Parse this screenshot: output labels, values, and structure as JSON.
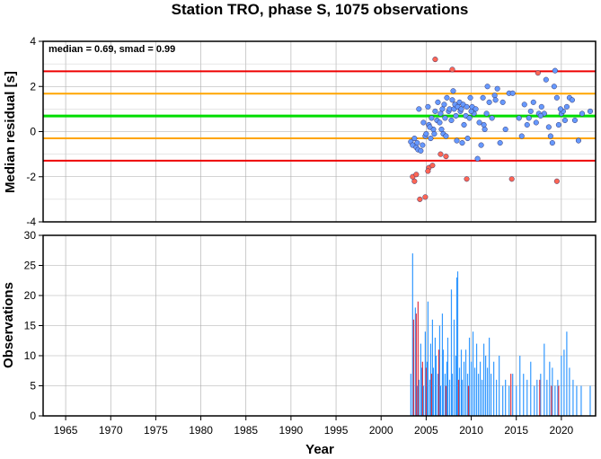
{
  "chart_data": [
    {
      "type": "scatter",
      "title": "Station TRO, phase S, 1075 observations",
      "annotation": "median = 0.69, smad = 0.99",
      "ylabel": "Median residual [s]",
      "xlabel": "",
      "xlim": [
        1962.5,
        2023.8
      ],
      "ylim": [
        -4,
        4
      ],
      "yticks": [
        "-4",
        "-2",
        "0",
        "2",
        "4"
      ],
      "ytick_values": [
        -4,
        -2,
        0,
        2,
        4
      ],
      "grid": true,
      "lines": [
        {
          "name": "median",
          "y": 0.69,
          "color": "#00dd00"
        },
        {
          "name": "+1 smad",
          "y": 1.68,
          "color": "#ffa500"
        },
        {
          "name": "-1 smad",
          "y": -0.3,
          "color": "#ffa500"
        },
        {
          "name": "+2 smad",
          "y": 2.67,
          "color": "#ee0000"
        },
        {
          "name": "-2 smad",
          "y": -1.29,
          "color": "#ee0000"
        }
      ],
      "series": [
        {
          "color": "#6699ff",
          "points": [
            [
              2003.3,
              -0.45
            ],
            [
              2003.5,
              -0.6
            ],
            [
              2003.7,
              -0.3
            ],
            [
              2003.9,
              -0.7
            ],
            [
              2004.1,
              -0.8
            ],
            [
              2004.2,
              1.0
            ],
            [
              2004.4,
              -0.85
            ],
            [
              2004.6,
              -0.6
            ],
            [
              2004.7,
              0.4
            ],
            [
              2004.9,
              -0.2
            ],
            [
              2005.0,
              -0.1
            ],
            [
              2005.2,
              1.1
            ],
            [
              2005.3,
              0.3
            ],
            [
              2005.5,
              -0.3
            ],
            [
              2005.6,
              0.6
            ],
            [
              2005.8,
              0.1
            ],
            [
              2005.9,
              -0.1
            ],
            [
              2006.0,
              0.9
            ],
            [
              2006.2,
              0.5
            ],
            [
              2006.3,
              1.3
            ],
            [
              2006.5,
              0.4
            ],
            [
              2006.6,
              0.8
            ],
            [
              2006.8,
              1.0
            ],
            [
              2006.9,
              -0.1
            ],
            [
              2007.0,
              1.2
            ],
            [
              2007.2,
              -0.2
            ],
            [
              2007.3,
              1.5
            ],
            [
              2007.5,
              0.9
            ],
            [
              2007.6,
              1.0
            ],
            [
              2007.8,
              0.5
            ],
            [
              2007.9,
              1.4
            ],
            [
              2008.0,
              1.8
            ],
            [
              2008.1,
              1.0
            ],
            [
              2008.2,
              1.2
            ],
            [
              2008.4,
              -0.4
            ],
            [
              2008.5,
              1.1
            ],
            [
              2008.7,
              1.3
            ],
            [
              2008.8,
              0.9
            ],
            [
              2008.9,
              1.0
            ],
            [
              2009.1,
              1.2
            ],
            [
              2009.2,
              0.3
            ],
            [
              2009.4,
              0.7
            ],
            [
              2009.5,
              1.1
            ],
            [
              2009.6,
              -0.3
            ],
            [
              2009.8,
              0.6
            ],
            [
              2009.9,
              1.5
            ],
            [
              2010.1,
              1.1
            ],
            [
              2010.3,
              0.8
            ],
            [
              2010.5,
              1.0
            ],
            [
              2010.7,
              -1.2
            ],
            [
              2010.9,
              0.4
            ],
            [
              2011.1,
              -0.6
            ],
            [
              2011.3,
              1.5
            ],
            [
              2011.5,
              0.1
            ],
            [
              2011.7,
              0.8
            ],
            [
              2011.8,
              2.0
            ],
            [
              2012.0,
              1.3
            ],
            [
              2012.3,
              0.6
            ],
            [
              2012.6,
              1.6
            ],
            [
              2012.9,
              1.9
            ],
            [
              2013.2,
              -0.5
            ],
            [
              2013.5,
              1.3
            ],
            [
              2013.8,
              0.1
            ],
            [
              2014.2,
              1.7
            ],
            [
              2014.6,
              1.7
            ],
            [
              2015.3,
              0.6
            ],
            [
              2015.6,
              -0.2
            ],
            [
              2015.9,
              1.2
            ],
            [
              2016.2,
              0.3
            ],
            [
              2016.6,
              0.9
            ],
            [
              2016.9,
              1.3
            ],
            [
              2017.2,
              0.4
            ],
            [
              2017.5,
              0.8
            ],
            [
              2017.8,
              1.1
            ],
            [
              2018.1,
              0.8
            ],
            [
              2018.3,
              2.3
            ],
            [
              2018.6,
              0.2
            ],
            [
              2018.8,
              -0.2
            ],
            [
              2019.0,
              -0.5
            ],
            [
              2019.2,
              2.0
            ],
            [
              2019.3,
              2.7
            ],
            [
              2019.5,
              1.5
            ],
            [
              2019.7,
              0.3
            ],
            [
              2020.0,
              0.8
            ],
            [
              2020.2,
              0.9
            ],
            [
              2020.4,
              0.5
            ],
            [
              2020.6,
              1.1
            ],
            [
              2020.9,
              1.5
            ],
            [
              2021.2,
              1.4
            ],
            [
              2021.5,
              0.5
            ],
            [
              2021.9,
              -0.4
            ],
            [
              2022.3,
              0.8
            ],
            [
              2023.2,
              0.9
            ],
            [
              2004.0,
              -0.5
            ],
            [
              2005.4,
              0.2
            ],
            [
              2006.7,
              0.1
            ],
            [
              2008.3,
              0.7
            ],
            [
              2010.0,
              0.9
            ],
            [
              2012.7,
              1.4
            ],
            [
              2016.4,
              0.6
            ],
            [
              2017.7,
              0.7
            ],
            [
              2019.9,
              1.0
            ],
            [
              2011.4,
              0.3
            ],
            [
              2009.0,
              -0.5
            ],
            [
              2007.1,
              0.6
            ]
          ]
        },
        {
          "color": "#ff6655",
          "points": [
            [
              2003.5,
              -2.0
            ],
            [
              2003.7,
              -2.2
            ],
            [
              2003.9,
              -1.9
            ],
            [
              2004.3,
              -3.0
            ],
            [
              2004.9,
              -2.9
            ],
            [
              2005.3,
              -1.6
            ],
            [
              2005.7,
              -1.5
            ],
            [
              2006.0,
              3.2
            ],
            [
              2006.6,
              -1.0
            ],
            [
              2007.2,
              -1.1
            ],
            [
              2007.9,
              2.75
            ],
            [
              2009.5,
              -2.1
            ],
            [
              2014.5,
              -2.1
            ],
            [
              2017.4,
              2.6
            ],
            [
              2019.5,
              -2.2
            ],
            [
              2005.2,
              -1.75
            ]
          ]
        }
      ]
    },
    {
      "type": "bar",
      "ylabel": "Observations",
      "xlabel": "Year",
      "xlim": [
        1962.5,
        2023.8
      ],
      "ylim": [
        0,
        30
      ],
      "xticks": [
        "1965",
        "1970",
        "1975",
        "1980",
        "1985",
        "1990",
        "1995",
        "2000",
        "2005",
        "2010",
        "2015",
        "2020"
      ],
      "xtick_values": [
        1965,
        1970,
        1975,
        1980,
        1985,
        1990,
        1995,
        2000,
        2005,
        2010,
        2015,
        2020
      ],
      "yticks": [
        "0",
        "5",
        "10",
        "15",
        "20",
        "25",
        "30"
      ],
      "ytick_values": [
        0,
        5,
        10,
        15,
        20,
        25,
        30
      ],
      "grid": true,
      "series": [
        {
          "color": "#3399ff",
          "bars": [
            [
              2003.3,
              7
            ],
            [
              2003.5,
              27
            ],
            [
              2003.6,
              13
            ],
            [
              2003.8,
              18
            ],
            [
              2004.0,
              5
            ],
            [
              2004.2,
              6
            ],
            [
              2004.4,
              12
            ],
            [
              2004.5,
              8
            ],
            [
              2004.7,
              5
            ],
            [
              2004.9,
              14
            ],
            [
              2005.1,
              9
            ],
            [
              2005.2,
              19
            ],
            [
              2005.4,
              6
            ],
            [
              2005.5,
              12
            ],
            [
              2005.7,
              16
            ],
            [
              2005.8,
              8
            ],
            [
              2006.0,
              13
            ],
            [
              2006.1,
              10
            ],
            [
              2006.3,
              7
            ],
            [
              2006.5,
              15
            ],
            [
              2006.6,
              5
            ],
            [
              2006.8,
              17
            ],
            [
              2006.9,
              11
            ],
            [
              2007.1,
              7
            ],
            [
              2007.3,
              9
            ],
            [
              2007.4,
              13
            ],
            [
              2007.6,
              6
            ],
            [
              2007.8,
              21
            ],
            [
              2007.9,
              7
            ],
            [
              2008.1,
              16
            ],
            [
              2008.3,
              10
            ],
            [
              2008.4,
              23
            ],
            [
              2008.5,
              24
            ],
            [
              2008.7,
              8
            ],
            [
              2008.9,
              11
            ],
            [
              2009.0,
              6
            ],
            [
              2009.2,
              9
            ],
            [
              2009.4,
              11
            ],
            [
              2009.6,
              7
            ],
            [
              2009.8,
              13
            ],
            [
              2010.0,
              9
            ],
            [
              2010.2,
              14
            ],
            [
              2010.4,
              8
            ],
            [
              2010.6,
              12
            ],
            [
              2010.8,
              7
            ],
            [
              2011.0,
              9
            ],
            [
              2011.2,
              6
            ],
            [
              2011.4,
              12
            ],
            [
              2011.6,
              10
            ],
            [
              2011.8,
              8
            ],
            [
              2012.0,
              13
            ],
            [
              2012.2,
              7
            ],
            [
              2012.5,
              9
            ],
            [
              2012.8,
              6
            ],
            [
              2013.1,
              10
            ],
            [
              2013.5,
              5
            ],
            [
              2013.8,
              6
            ],
            [
              2014.2,
              5
            ],
            [
              2014.6,
              7
            ],
            [
              2015.0,
              5
            ],
            [
              2015.4,
              10
            ],
            [
              2015.8,
              7
            ],
            [
              2016.2,
              6
            ],
            [
              2016.6,
              9
            ],
            [
              2017.0,
              5
            ],
            [
              2017.3,
              6
            ],
            [
              2017.7,
              7
            ],
            [
              2018.1,
              12
            ],
            [
              2018.4,
              6
            ],
            [
              2018.7,
              9
            ],
            [
              2019.0,
              8
            ],
            [
              2019.3,
              5
            ],
            [
              2019.6,
              6
            ],
            [
              2020.0,
              10
            ],
            [
              2020.3,
              11
            ],
            [
              2020.6,
              14
            ],
            [
              2020.9,
              8
            ],
            [
              2021.3,
              6
            ],
            [
              2021.7,
              5
            ],
            [
              2022.2,
              5
            ],
            [
              2023.2,
              5
            ]
          ]
        },
        {
          "color": "#dd3344",
          "bars": [
            [
              2003.6,
              16
            ],
            [
              2003.9,
              17
            ],
            [
              2004.1,
              19
            ],
            [
              2004.6,
              9
            ],
            [
              2005.0,
              8
            ],
            [
              2005.6,
              7
            ],
            [
              2006.4,
              11
            ],
            [
              2007.2,
              5
            ],
            [
              2008.6,
              6
            ],
            [
              2009.7,
              5
            ],
            [
              2014.4,
              7
            ],
            [
              2017.6,
              6
            ],
            [
              2018.9,
              5
            ],
            [
              2019.7,
              5
            ]
          ]
        }
      ]
    }
  ]
}
